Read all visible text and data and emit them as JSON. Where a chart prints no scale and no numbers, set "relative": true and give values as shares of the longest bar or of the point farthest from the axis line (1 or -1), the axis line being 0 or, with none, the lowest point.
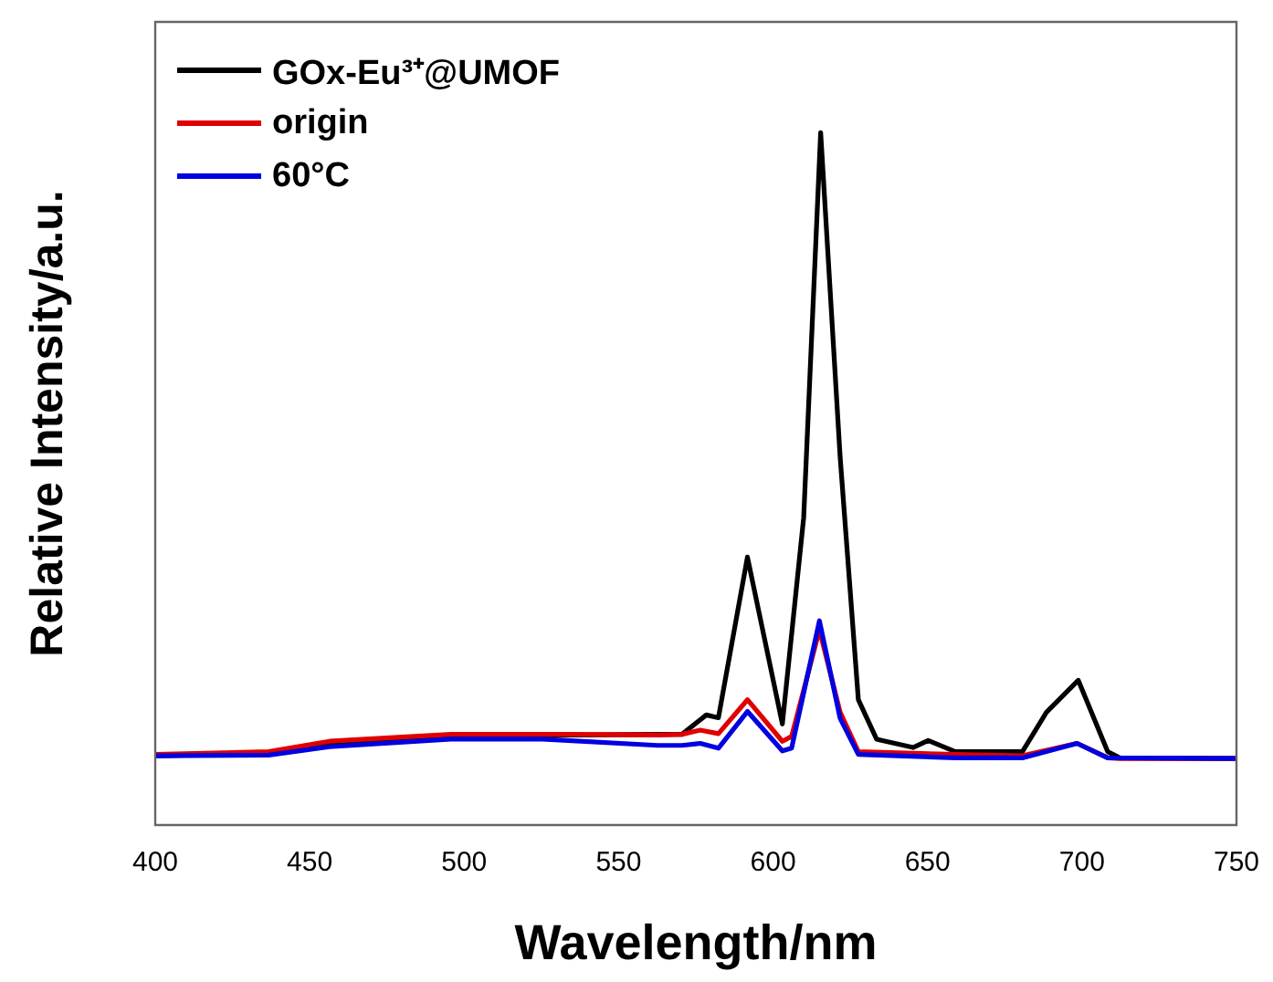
{
  "chart_data": {
    "type": "line",
    "xlabel": "Wavelength/nm",
    "ylabel": "Relative Intensity/a.u.",
    "relative": true,
    "xlim": [
      400,
      750
    ],
    "xticks": [
      400,
      450,
      500,
      550,
      600,
      650,
      700,
      750
    ],
    "legend": "top left",
    "grid": false,
    "marker": "none",
    "line_style": "solid",
    "series": [
      {
        "name": "GOx-Eu³⁺@UMOF",
        "color": "#000000",
        "x": [
          400,
          436.7,
          456.4,
          495.7,
          535,
          562.6,
          570.5,
          578.4,
          582.3,
          591.7,
          603,
          609.9,
          615.4,
          621.7,
          627.6,
          633.5,
          645.3,
          650.2,
          659,
          680.7,
          688.5,
          698.8,
          708.3,
          712.2,
          750
        ],
        "values": [
          0.1,
          0.104,
          0.118,
          0.128,
          0.13,
          0.131,
          0.131,
          0.159,
          0.155,
          0.387,
          0.146,
          0.444,
          1.0,
          0.532,
          0.181,
          0.124,
          0.112,
          0.122,
          0.106,
          0.106,
          0.163,
          0.209,
          0.106,
          0.097,
          0.096
        ]
      },
      {
        "name": "origin",
        "color": "#e00000",
        "x": [
          400,
          436.7,
          456.4,
          495.7,
          535,
          562.6,
          570.5,
          576.4,
          582.3,
          591.7,
          603,
          606,
          615,
          621.7,
          627.6,
          659,
          680.7,
          698.4,
          708.3,
          712.2,
          750
        ],
        "values": [
          0.102,
          0.106,
          0.121,
          0.131,
          0.131,
          0.13,
          0.131,
          0.137,
          0.132,
          0.181,
          0.121,
          0.128,
          0.282,
          0.163,
          0.106,
          0.102,
          0.1,
          0.118,
          0.097,
          0.096,
          0.096
        ]
      },
      {
        "name": "60°C",
        "color": "#0000e0",
        "x": [
          400,
          436.7,
          456.4,
          495.7,
          525.3,
          562.6,
          570.5,
          576.4,
          582.3,
          591.7,
          603,
          606,
          615,
          621.7,
          627.6,
          659,
          680.7,
          698.4,
          708.3,
          750
        ],
        "values": [
          0.1,
          0.101,
          0.113,
          0.124,
          0.124,
          0.115,
          0.115,
          0.118,
          0.111,
          0.164,
          0.107,
          0.111,
          0.295,
          0.154,
          0.102,
          0.097,
          0.097,
          0.118,
          0.097,
          0.096
        ]
      }
    ]
  }
}
